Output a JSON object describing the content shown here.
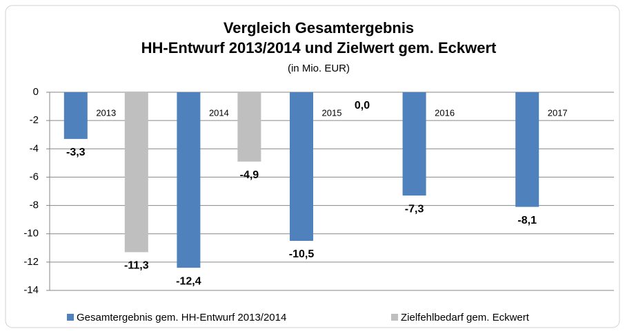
{
  "chart_data": {
    "type": "bar",
    "title": "Vergleich Gesamtergebnis",
    "subtitle_line": "HH-Entwurf 2013/2014 und Zielwert gem. Eckwert",
    "unit_note": "(in Mio. EUR)",
    "categories": [
      "2013",
      "2014",
      "2015",
      "2016",
      "2017"
    ],
    "series": [
      {
        "name": "Gesamtergebnis gem. HH-Entwurf 2013/2014",
        "color": "#4f81bd",
        "values": [
          -3.3,
          -12.4,
          -10.5,
          -7.3,
          -8.1
        ],
        "value_labels": [
          "-3,3",
          "-12,4",
          "-10,5",
          "-7,3",
          "-8,1"
        ]
      },
      {
        "name": "Zielfehlbedarf gem. Eckwert",
        "color": "#bfbfbf",
        "values": [
          -11.3,
          -4.9,
          0.0,
          null,
          null
        ],
        "value_labels": [
          "-11,3",
          "-4,9",
          "0,0",
          null,
          null
        ]
      }
    ],
    "ylim": [
      -14,
      0
    ],
    "yticks": [
      0,
      -2,
      -4,
      -6,
      -8,
      -10,
      -12,
      -14
    ],
    "grid": true,
    "legend": "bottom"
  }
}
